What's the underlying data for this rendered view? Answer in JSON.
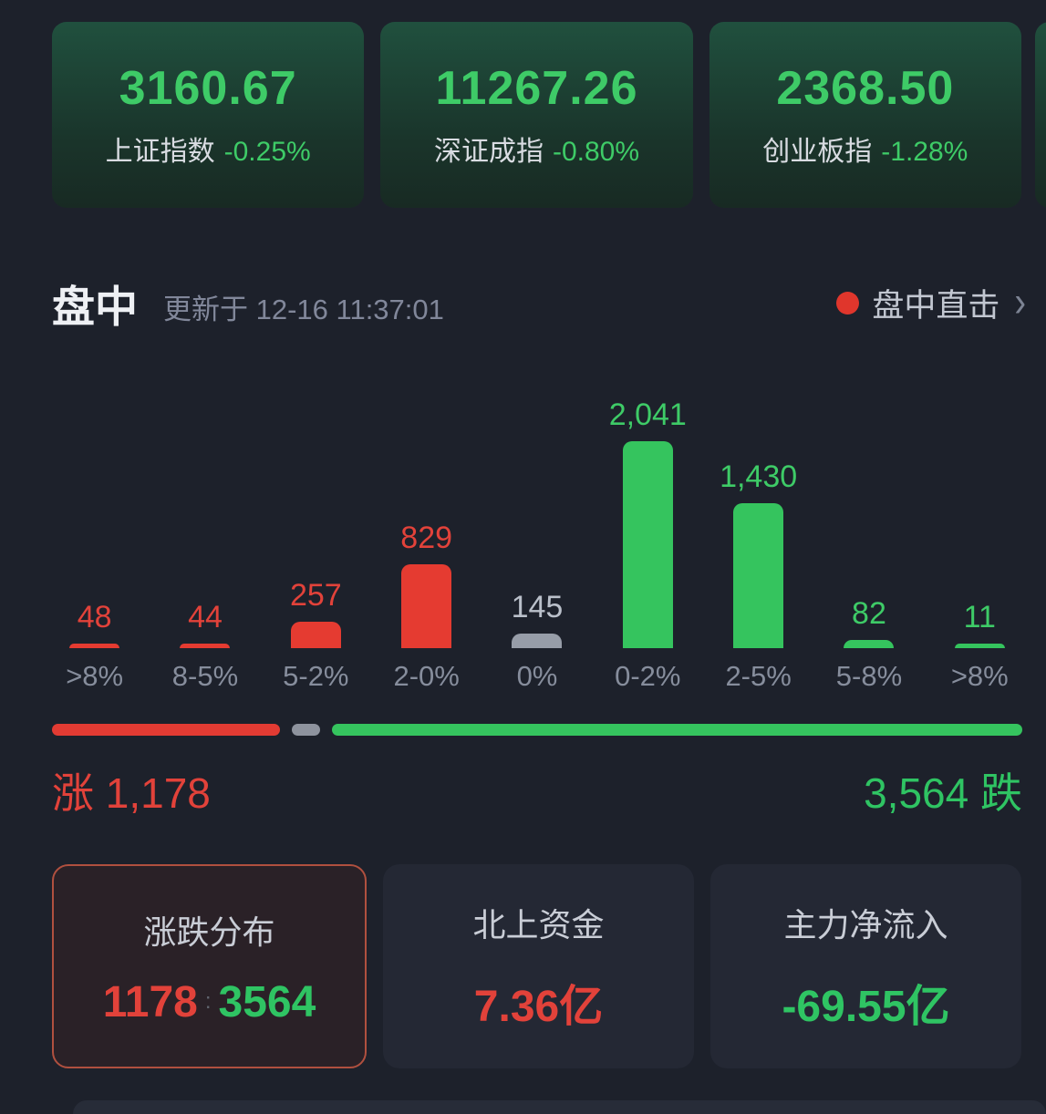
{
  "index_cards": [
    {
      "value": "3160.67",
      "name": "上证指数",
      "change": "-0.25%"
    },
    {
      "value": "11267.26",
      "name": "深证成指",
      "change": "-0.80%"
    },
    {
      "value": "2368.50",
      "name": "创业板指",
      "change": "-1.28%"
    }
  ],
  "section": {
    "title": "盘中",
    "updated": "更新于 12-16 11:37:01",
    "live_label": "盘中直击",
    "chevron": "›"
  },
  "chart_data": {
    "type": "bar",
    "title": "涨跌分布",
    "categories": [
      ">8%",
      "8-5%",
      "5-2%",
      "2-0%",
      "0%",
      "0-2%",
      "2-5%",
      "5-8%",
      ">8%"
    ],
    "values": [
      48,
      44,
      257,
      829,
      145,
      2041,
      1430,
      82,
      11
    ],
    "value_labels": [
      "48",
      "44",
      "257",
      "829",
      "145",
      "2,041",
      "1,430",
      "82",
      "11"
    ],
    "series_colors": [
      "red",
      "red",
      "red",
      "red",
      "flat",
      "green",
      "green",
      "green",
      "green"
    ],
    "xlabel": "",
    "ylabel": "",
    "ylim": [
      0,
      2600
    ],
    "grid": false,
    "legend_position": "none"
  },
  "ratio_bar": {
    "up": 1178,
    "flat": 145,
    "down": 3564
  },
  "summary": {
    "up_label": "涨 1,178",
    "down_label": "3,564 跌"
  },
  "panels": {
    "distribution": {
      "title": "涨跌分布",
      "up_value": "1178",
      "separator": ":",
      "down_value": "3564"
    },
    "northbound": {
      "title": "北上资金",
      "value": "7.36亿"
    },
    "main_flow": {
      "title": "主力净流入",
      "value": "-69.55亿"
    }
  },
  "colors": {
    "up_red": "#e2423a",
    "down_green": "#3ecb67",
    "flat_gray": "#979da8",
    "accent_dot": "#e0362c",
    "card_green_bg": "#1f4c3a",
    "page_bg": "#1d212b"
  }
}
